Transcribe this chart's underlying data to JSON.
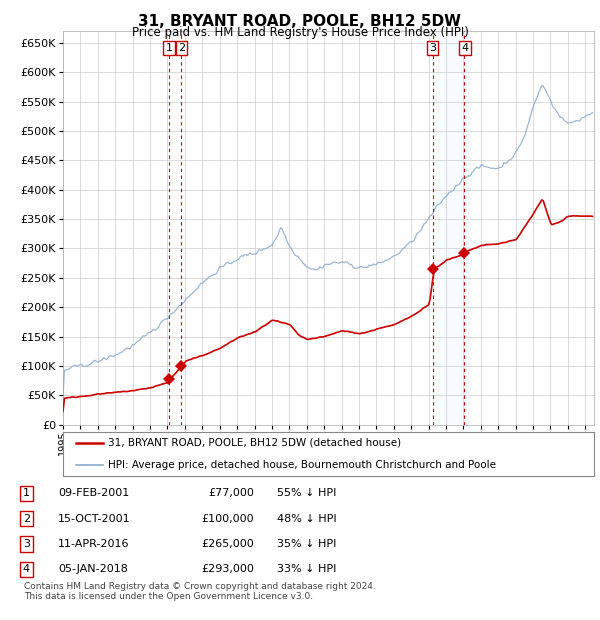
{
  "title": "31, BRYANT ROAD, POOLE, BH12 5DW",
  "subtitle": "Price paid vs. HM Land Registry's House Price Index (HPI)",
  "ylim": [
    0,
    670000
  ],
  "yticks": [
    0,
    50000,
    100000,
    150000,
    200000,
    250000,
    300000,
    350000,
    400000,
    450000,
    500000,
    550000,
    600000,
    650000
  ],
  "sale_color": "#cc0000",
  "hpi_color": "#88aacc",
  "transaction_color": "#cc0000",
  "transactions": [
    {
      "id": "1",
      "year": 2001.1,
      "price": 77000
    },
    {
      "id": "2",
      "year": 2001.79,
      "price": 100000
    },
    {
      "id": "3",
      "year": 2016.28,
      "price": 265000
    },
    {
      "id": "4",
      "year": 2018.02,
      "price": 293000
    }
  ],
  "footer": "Contains HM Land Registry data © Crown copyright and database right 2024.\nThis data is licensed under the Open Government Licence v3.0.",
  "legend_entries": [
    "31, BRYANT ROAD, POOLE, BH12 5DW (detached house)",
    "HPI: Average price, detached house, Bournemouth Christchurch and Poole"
  ],
  "table_rows": [
    [
      "1",
      "09-FEB-2001",
      "£77,000",
      "55% ↓ HPI"
    ],
    [
      "2",
      "15-OCT-2001",
      "£100,000",
      "48% ↓ HPI"
    ],
    [
      "3",
      "11-APR-2016",
      "£265,000",
      "35% ↓ HPI"
    ],
    [
      "4",
      "05-JAN-2018",
      "£293,000",
      "33% ↓ HPI"
    ]
  ]
}
